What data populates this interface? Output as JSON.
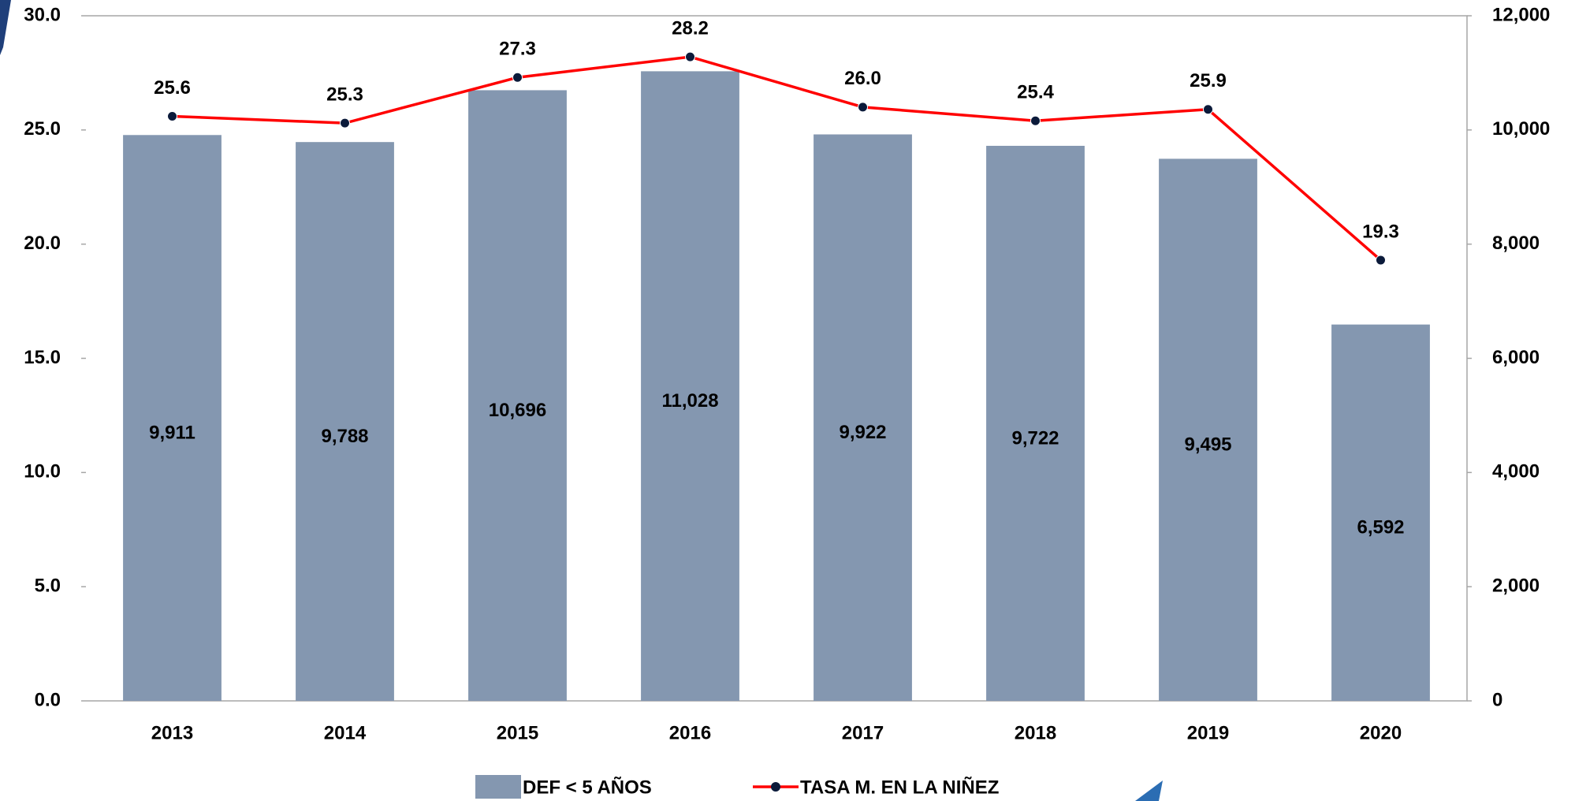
{
  "chart_data": {
    "type": "bar",
    "categories": [
      "2013",
      "2014",
      "2015",
      "2016",
      "2017",
      "2018",
      "2019",
      "2020"
    ],
    "series": [
      {
        "name": "DEF < 5 AÑOS",
        "type": "bar",
        "axis": "y2",
        "color": "#8497b0",
        "values": [
          9911,
          9788,
          10696,
          11028,
          9922,
          9722,
          9495,
          6592
        ],
        "value_labels": [
          "9,911",
          "9,788",
          "10,696",
          "11,028",
          "9,922",
          "9,722",
          "9,495",
          "6,592"
        ]
      },
      {
        "name": "TASA M. EN LA NIÑEZ",
        "type": "line",
        "color": "#ff0000",
        "marker_color": "#0b1a3a",
        "values": [
          25.6,
          25.3,
          27.3,
          28.2,
          26.0,
          25.4,
          25.9,
          19.3
        ],
        "value_labels": [
          "25.6",
          "25.3",
          "27.3",
          "28.2",
          "26.0",
          "25.4",
          "25.9",
          "19.3"
        ]
      }
    ],
    "ylim": [
      0,
      30
    ],
    "yticks": [
      {
        "value": 0,
        "label": "0.0"
      },
      {
        "value": 5,
        "label": "5.0"
      },
      {
        "value": 10,
        "label": "10.0"
      },
      {
        "value": 15,
        "label": "15.0"
      },
      {
        "value": 20,
        "label": "20.0"
      },
      {
        "value": 25,
        "label": "25.0"
      },
      {
        "value": 30,
        "label": "30.0"
      }
    ],
    "y2lim": [
      0,
      12000
    ],
    "y2ticks": [
      0,
      {
        "value": 2000,
        "label": "2,000"
      },
      {
        "value": 4000,
        "label": "4,000"
      },
      {
        "value": 6000,
        "label": "6,000"
      },
      {
        "value": 8000,
        "label": "8,000"
      },
      {
        "value": 10000,
        "label": "10,000"
      },
      {
        "value": 12000,
        "label": "12,000"
      }
    ],
    "grid": false,
    "legend": "bottom"
  }
}
